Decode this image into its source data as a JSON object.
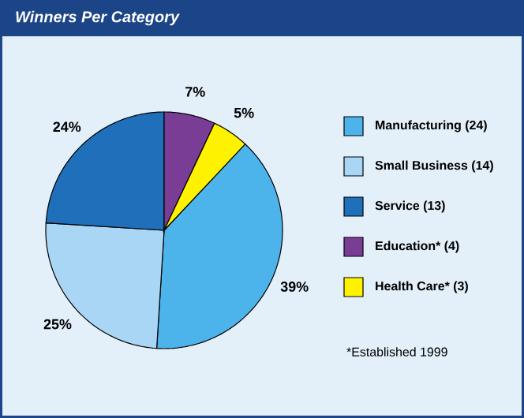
{
  "chart_data": {
    "type": "pie",
    "title": "Winners Per Category",
    "categories": [
      "Manufacturing (24)",
      "Small Business (14)",
      "Service (13)",
      "Education* (4)",
      "Health Care* (3)"
    ],
    "values": [
      39,
      25,
      24,
      7,
      5
    ],
    "value_labels": [
      "39%",
      "25%",
      "24%",
      "7%",
      "5%"
    ],
    "colors": [
      "#4cb4ea",
      "#a9d6f5",
      "#1f6fba",
      "#7a3d96",
      "#fff200"
    ],
    "legend": "right",
    "annotations": [
      "*Established 1999"
    ]
  }
}
